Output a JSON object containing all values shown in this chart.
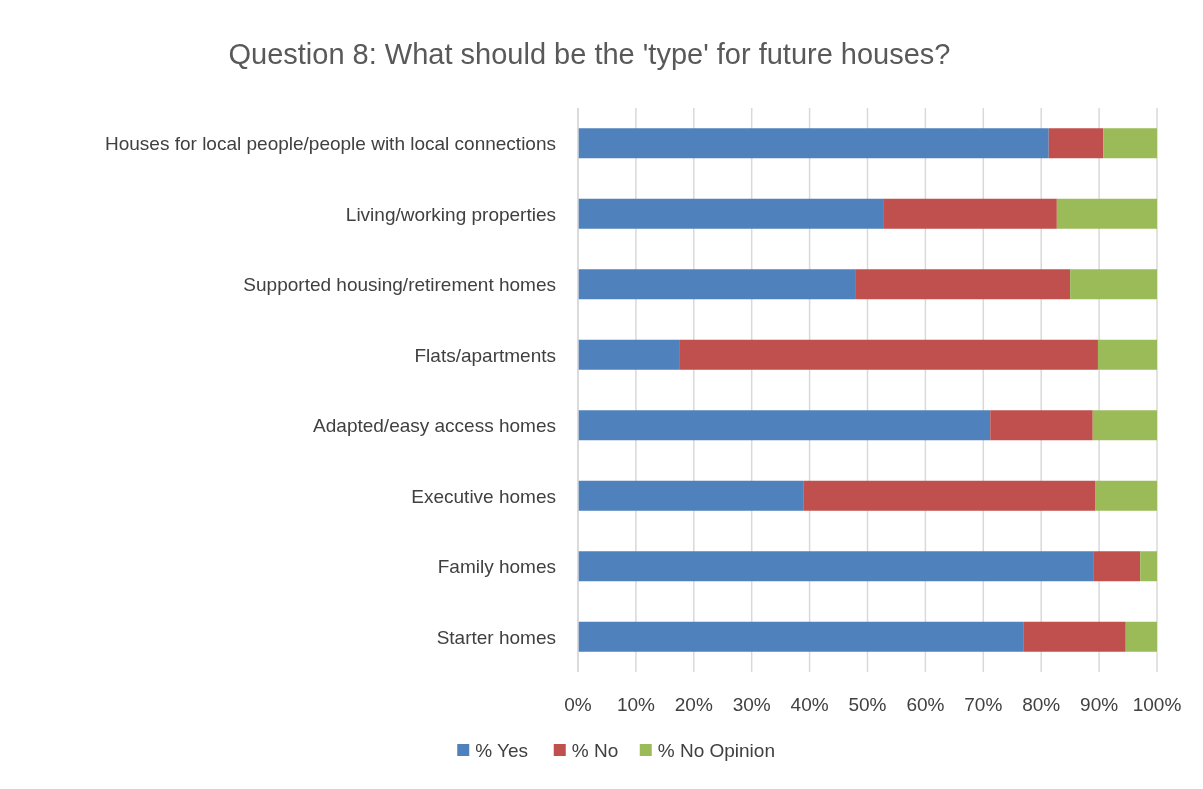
{
  "chart_data": {
    "type": "bar",
    "title": "Question 8: What should be the 'type' for future houses?",
    "orientation": "horizontal",
    "stacked": true,
    "categories": [
      "Houses for local people/people with local connections",
      "Living/working properties",
      "Supported housing/retirement homes",
      "Flats/apartments",
      "Adapted/easy access homes",
      "Executive homes",
      "Family homes",
      "Starter homes"
    ],
    "series": [
      {
        "name": "% Yes",
        "color": "#4f81bd",
        "values": [
          81.3,
          52.7,
          48.0,
          17.6,
          71.2,
          38.9,
          89.1,
          77.0
        ]
      },
      {
        "name": "% No",
        "color": "#c0504d",
        "values": [
          9.4,
          30.0,
          37.0,
          72.2,
          17.7,
          50.4,
          8.0,
          17.6
        ]
      },
      {
        "name": "% No Opinion",
        "color": "#9bbb59",
        "values": [
          9.3,
          17.3,
          15.0,
          10.2,
          11.1,
          10.7,
          2.9,
          5.4
        ]
      }
    ],
    "xlim": [
      0,
      100
    ],
    "xticks": [
      {
        "value": 0,
        "label": "0%"
      },
      {
        "value": 10,
        "label": "10%"
      },
      {
        "value": 20,
        "label": "20%"
      },
      {
        "value": 30,
        "label": "30%"
      },
      {
        "value": 40,
        "label": "40%"
      },
      {
        "value": 50,
        "label": "50%"
      },
      {
        "value": 60,
        "label": "60%"
      },
      {
        "value": 70,
        "label": "70%"
      },
      {
        "value": 80,
        "label": "80%"
      },
      {
        "value": 90,
        "label": "90%"
      },
      {
        "value": 100,
        "label": "100%"
      }
    ],
    "grid": "x",
    "legend": "bottom"
  }
}
